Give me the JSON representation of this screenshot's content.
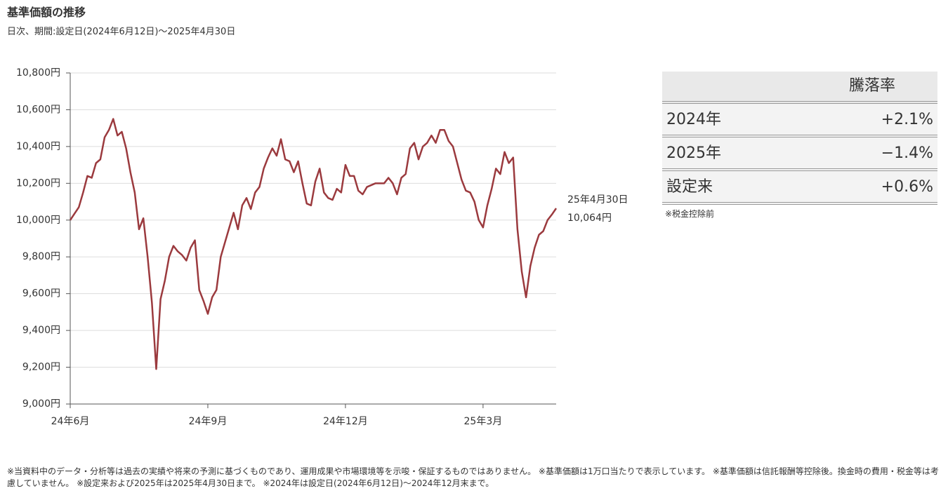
{
  "chart_data": {
    "type": "line",
    "title": "基準価額の推移",
    "subtitle": "日次、期間:設定日(2024年6月12日)～2025年4月30日",
    "categories": [
      "24年6月",
      null,
      null,
      null,
      null,
      null,
      null,
      null,
      null,
      null,
      null,
      null,
      null,
      null,
      null,
      null,
      null,
      null,
      null,
      null,
      null,
      null,
      null,
      null,
      null,
      null,
      null,
      null,
      null,
      null,
      null,
      null,
      "24年9月",
      null,
      null,
      null,
      null,
      null,
      null,
      null,
      null,
      null,
      null,
      null,
      null,
      null,
      null,
      null,
      null,
      null,
      null,
      null,
      null,
      null,
      null,
      null,
      null,
      null,
      null,
      null,
      null,
      null,
      null,
      null,
      "24年12月",
      null,
      null,
      null,
      null,
      null,
      null,
      null,
      null,
      null,
      null,
      null,
      null,
      null,
      null,
      null,
      null,
      null,
      null,
      null,
      null,
      null,
      null,
      null,
      null,
      null,
      null,
      null,
      null,
      null,
      null,
      null,
      "25年3月",
      null,
      null,
      null,
      null,
      null,
      null,
      null,
      null,
      null,
      null,
      null,
      null,
      null,
      null,
      null,
      null,
      null
    ],
    "series": [
      {
        "name": "基準価額",
        "color": "#9b3a3e",
        "values": [
          10000,
          10035,
          10070,
          10150,
          10240,
          10230,
          10310,
          10330,
          10450,
          10490,
          10550,
          10460,
          10480,
          10390,
          10260,
          10150,
          9950,
          10010,
          9800,
          9550,
          9190,
          9570,
          9670,
          9800,
          9860,
          9830,
          9810,
          9780,
          9850,
          9890,
          9620,
          9560,
          9490,
          9580,
          9620,
          9800,
          9880,
          9960,
          10040,
          9950,
          10080,
          10120,
          10060,
          10150,
          10180,
          10280,
          10340,
          10390,
          10350,
          10440,
          10330,
          10320,
          10260,
          10320,
          10200,
          10090,
          10080,
          10210,
          10280,
          10150,
          10120,
          10110,
          10170,
          10150,
          10300,
          10240,
          10240,
          10160,
          10140,
          10180,
          10190,
          10200,
          10200,
          10200,
          10230,
          10200,
          10140,
          10230,
          10250,
          10390,
          10420,
          10330,
          10400,
          10420,
          10460,
          10420,
          10490,
          10490,
          10430,
          10400,
          10310,
          10220,
          10160,
          10150,
          10100,
          10000,
          9960,
          10080,
          10170,
          10280,
          10250,
          10370,
          10310,
          10340,
          9950,
          9720,
          9580,
          9750,
          9850,
          9920,
          9940,
          10000,
          10030,
          10064
        ],
        "value_labels": [
          null,
          null,
          null,
          null,
          null,
          null,
          null,
          null,
          null,
          null,
          null,
          null,
          null,
          null,
          null,
          null,
          null,
          null,
          null,
          null,
          null,
          null,
          null,
          null,
          null,
          null,
          null,
          null,
          null,
          null,
          null,
          null,
          null,
          null,
          null,
          null,
          null,
          null,
          null,
          null,
          null,
          null,
          null,
          null,
          null,
          null,
          null,
          null,
          null,
          null,
          null,
          null,
          null,
          null,
          null,
          null,
          null,
          null,
          null,
          null,
          null,
          null,
          null,
          null,
          null,
          null,
          null,
          null,
          null,
          null,
          null,
          null,
          null,
          null,
          null,
          null,
          null,
          null,
          null,
          null,
          null,
          null,
          null,
          null,
          null,
          null,
          null,
          null,
          null,
          null,
          null,
          null,
          null,
          null,
          null,
          null,
          null,
          null,
          null,
          null,
          null,
          null,
          null,
          null,
          null,
          null,
          null,
          null,
          null,
          null,
          null,
          null,
          null,
          "10,064円"
        ]
      }
    ],
    "annotation": "25年4月30日",
    "ylim": [
      9000,
      10800
    ],
    "yticks": [
      {
        "value": 9000,
        "label": "9,000円"
      },
      {
        "value": 9200,
        "label": "9,200円"
      },
      {
        "value": 9400,
        "label": "9,400円"
      },
      {
        "value": 9600,
        "label": "9,600円"
      },
      {
        "value": 9800,
        "label": "9,800円"
      },
      {
        "value": 10000,
        "label": "10,000円"
      },
      {
        "value": 10200,
        "label": "10,200円"
      },
      {
        "value": 10400,
        "label": "10,400円"
      },
      {
        "value": 10600,
        "label": "10,600円"
      },
      {
        "value": 10800,
        "label": "10,800円"
      }
    ],
    "grid": true
  },
  "table": {
    "header": "騰落率",
    "rows": [
      [
        "2024年",
        "+2.1%"
      ],
      [
        "2025年",
        "−1.4%"
      ],
      [
        "設定来",
        "+0.6%"
      ]
    ],
    "note": "※税金控除前"
  },
  "footnote": "※当資料中のデータ・分析等は過去の実績や将来の予測に基づくものであり、運用成果や市場環境等を示唆・保証するものではありません。 ※基準価額は1万口当たりで表示しています。 ※基準価額は信託報酬等控除後。換金時の費用・税金等は考慮していません。 ※設定来および2025年は2025年4月30日まで。 ※2024年は設定日(2024年6月12日)～2024年12月末まで。"
}
